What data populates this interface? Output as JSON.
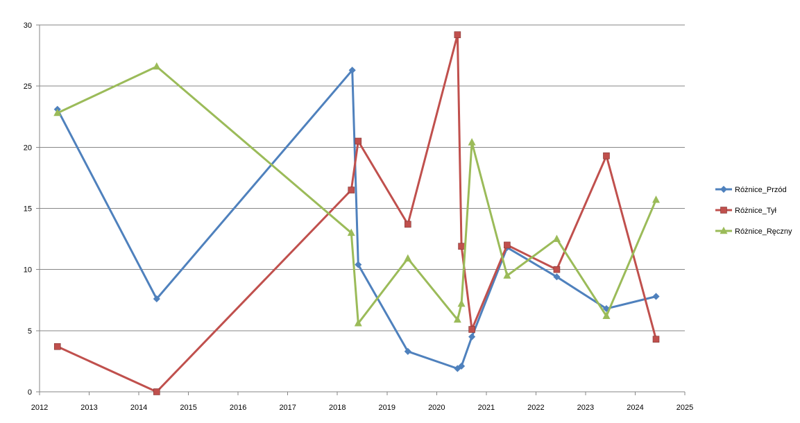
{
  "chart_data": {
    "type": "line",
    "title": "",
    "xlabel": "",
    "ylabel": "",
    "xlim": [
      2012,
      2025
    ],
    "ylim": [
      0,
      30
    ],
    "x_ticks": [
      2012,
      2013,
      2014,
      2015,
      2016,
      2017,
      2018,
      2019,
      2020,
      2021,
      2022,
      2023,
      2024,
      2025
    ],
    "y_ticks": [
      0,
      5,
      10,
      15,
      20,
      25,
      30
    ],
    "grid": "horizontal",
    "legend_position": "right",
    "series": [
      {
        "name": "Różnice_Przód",
        "color": "#4F81BD",
        "marker": "diamond",
        "points": [
          [
            2012.36,
            23.1
          ],
          [
            2014.36,
            7.6
          ],
          [
            2018.3,
            26.3
          ],
          [
            2018.42,
            10.4
          ],
          [
            2019.42,
            3.3
          ],
          [
            2020.42,
            1.9
          ],
          [
            2020.5,
            2.1
          ],
          [
            2020.71,
            4.5
          ],
          [
            2021.42,
            11.8
          ],
          [
            2022.42,
            9.4
          ],
          [
            2023.42,
            6.8
          ],
          [
            2024.42,
            7.8
          ]
        ]
      },
      {
        "name": "Różnice_Tył",
        "color": "#C0504D",
        "marker": "square",
        "points": [
          [
            2012.36,
            3.7
          ],
          [
            2014.36,
            0.0
          ],
          [
            2018.28,
            16.5
          ],
          [
            2018.42,
            20.5
          ],
          [
            2019.42,
            13.7
          ],
          [
            2020.42,
            29.2
          ],
          [
            2020.5,
            11.9
          ],
          [
            2020.71,
            5.1
          ],
          [
            2021.42,
            12.0
          ],
          [
            2022.42,
            10.0
          ],
          [
            2023.42,
            19.3
          ],
          [
            2024.42,
            4.3
          ]
        ]
      },
      {
        "name": "Różnice_Ręczny",
        "color": "#9BBB59",
        "marker": "triangle",
        "points": [
          [
            2012.36,
            22.8
          ],
          [
            2014.36,
            26.6
          ],
          [
            2018.28,
            13.0
          ],
          [
            2018.42,
            5.6
          ],
          [
            2019.42,
            10.9
          ],
          [
            2020.42,
            5.9
          ],
          [
            2020.5,
            7.2
          ],
          [
            2020.71,
            20.4
          ],
          [
            2021.42,
            9.5
          ],
          [
            2022.42,
            12.5
          ],
          [
            2023.42,
            6.2
          ],
          [
            2024.42,
            15.7
          ]
        ]
      }
    ]
  }
}
